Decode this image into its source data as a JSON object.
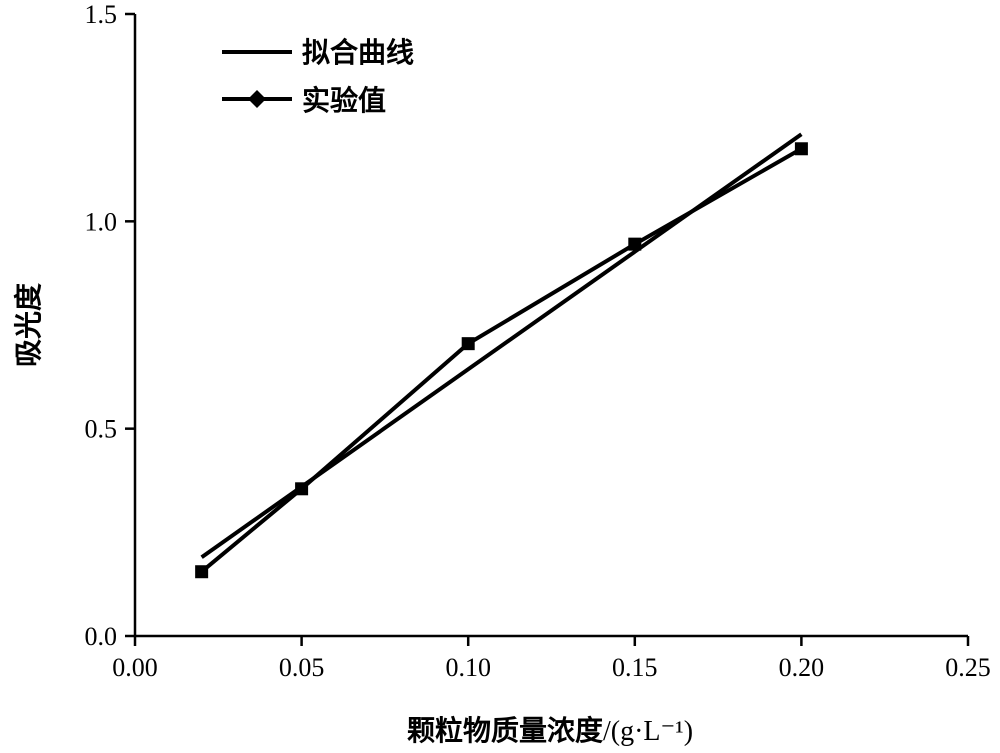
{
  "chart_data": {
    "type": "line",
    "title": "",
    "xlabel": "颗粒物质量浓度",
    "xlabel_unit": "/(g·L⁻¹)",
    "ylabel": "吸光度",
    "xlim": [
      0.0,
      0.25
    ],
    "ylim": [
      0.0,
      1.5
    ],
    "x_ticks": [
      "0.00",
      "0.05",
      "0.10",
      "0.15",
      "0.20",
      "0.25"
    ],
    "y_ticks": [
      "0.0",
      "0.5",
      "1.0",
      "1.5"
    ],
    "grid": false,
    "legend_position": "top-left",
    "series": [
      {
        "name": "拟合曲线",
        "style": "line",
        "x": [
          0.02,
          0.2
        ],
        "y": [
          0.19,
          1.21
        ]
      },
      {
        "name": "实验值",
        "style": "line-with-square-markers",
        "x": [
          0.02,
          0.05,
          0.1,
          0.15,
          0.2
        ],
        "y": [
          0.155,
          0.355,
          0.705,
          0.945,
          1.175
        ]
      }
    ]
  }
}
